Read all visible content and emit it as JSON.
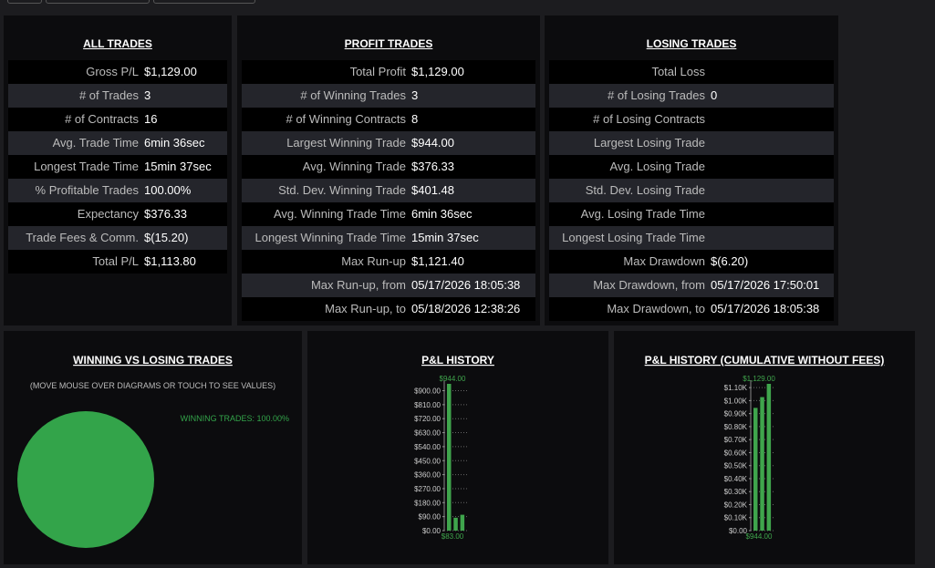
{
  "panels": [
    {
      "title": "ALL TRADES",
      "rows": [
        [
          "Gross P/L",
          "$1,129.00"
        ],
        [
          "# of Trades",
          "3"
        ],
        [
          "# of Contracts",
          "16"
        ],
        [
          "Avg. Trade Time",
          "6min 36sec"
        ],
        [
          "Longest Trade Time",
          "15min 37sec"
        ],
        [
          "% Profitable Trades",
          "100.00%"
        ],
        [
          "Expectancy",
          "$376.33"
        ],
        [
          "Trade Fees & Comm.",
          "$(15.20)"
        ],
        [
          "Total P/L",
          "$1,113.80"
        ]
      ]
    },
    {
      "title": "PROFIT TRADES",
      "rows": [
        [
          "Total Profit",
          "$1,129.00"
        ],
        [
          "# of Winning Trades",
          "3"
        ],
        [
          "# of Winning Contracts",
          "8"
        ],
        [
          "Largest Winning Trade",
          "$944.00"
        ],
        [
          "Avg. Winning Trade",
          "$376.33"
        ],
        [
          "Std. Dev. Winning Trade",
          "$401.48"
        ],
        [
          "Avg. Winning Trade Time",
          "6min 36sec"
        ],
        [
          "Longest Winning Trade Time",
          "15min 37sec"
        ],
        [
          "Max Run-up",
          "$1,121.40"
        ],
        [
          "Max Run-up, from",
          "05/17/2026 18:05:38"
        ],
        [
          "Max Run-up, to",
          "05/18/2026 12:38:26"
        ]
      ]
    },
    {
      "title": "LOSING TRADES",
      "rows": [
        [
          "Total Loss",
          null
        ],
        [
          "# of Losing Trades",
          "0"
        ],
        [
          "# of Losing Contracts",
          null
        ],
        [
          "Largest Losing Trade",
          null
        ],
        [
          "Avg. Losing Trade",
          null
        ],
        [
          "Std. Dev. Losing Trade",
          null
        ],
        [
          "Avg. Losing Trade Time",
          null
        ],
        [
          "Longest Losing Trade Time",
          null
        ],
        [
          "Max Drawdown",
          "$(6.20)"
        ],
        [
          "Max Drawdown, from",
          "05/17/2026 17:50:01"
        ],
        [
          "Max Drawdown, to",
          "05/17/2026 18:05:38"
        ]
      ]
    }
  ],
  "chart_data": [
    {
      "type": "pie",
      "title": "WINNING VS LOSING TRADES",
      "subtitle": "(MOVE MOUSE OVER DIAGRAMS OR TOUCH TO SEE VALUES)",
      "categories": [
        "WINNING TRADES"
      ],
      "values": [
        100
      ],
      "value_labels": [
        "WINNING TRADES: 100.00%"
      ],
      "color": "#33a44a"
    },
    {
      "type": "bar",
      "title": "P&L HISTORY",
      "categories": [
        null,
        null,
        null
      ],
      "values": [
        944,
        83,
        102
      ],
      "value_labels": [
        "$944.00",
        "$83.00",
        null
      ],
      "color": "#3fa54c",
      "ylim": [
        0,
        944
      ],
      "yticks": [
        {
          "value": 0,
          "label": "$0.00"
        },
        {
          "value": 90,
          "label": "$90.00"
        },
        {
          "value": 180,
          "label": "$180.00"
        },
        {
          "value": 270,
          "label": "$270.00"
        },
        {
          "value": 360,
          "label": "$360.00"
        },
        {
          "value": 450,
          "label": "$450.00"
        },
        {
          "value": 540,
          "label": "$540.00"
        },
        {
          "value": 630,
          "label": "$630.00"
        },
        {
          "value": 720,
          "label": "$720.00"
        },
        {
          "value": 810,
          "label": "$810.00"
        },
        {
          "value": 900,
          "label": "$900.00"
        }
      ],
      "grid": true
    },
    {
      "type": "bar",
      "title": "P&L HISTORY (CUMULATIVE WITHOUT FEES)",
      "categories": [
        null,
        null,
        null
      ],
      "values": [
        944,
        1027,
        1129
      ],
      "value_labels": [
        "$944.00",
        null,
        "$1,129.00"
      ],
      "color": "#3fa54c",
      "ylim": [
        0,
        1129
      ],
      "yticks": [
        {
          "value": 0,
          "label": "$0.00"
        },
        {
          "value": 100,
          "label": "$0.10K"
        },
        {
          "value": 200,
          "label": "$0.20K"
        },
        {
          "value": 300,
          "label": "$0.30K"
        },
        {
          "value": 400,
          "label": "$0.40K"
        },
        {
          "value": 500,
          "label": "$0.50K"
        },
        {
          "value": 600,
          "label": "$0.60K"
        },
        {
          "value": 700,
          "label": "$0.70K"
        },
        {
          "value": 800,
          "label": "$0.80K"
        },
        {
          "value": 900,
          "label": "$0.90K"
        },
        {
          "value": 1000,
          "label": "$1.00K"
        },
        {
          "value": 1100,
          "label": "$1.10K"
        }
      ],
      "grid": true
    }
  ]
}
